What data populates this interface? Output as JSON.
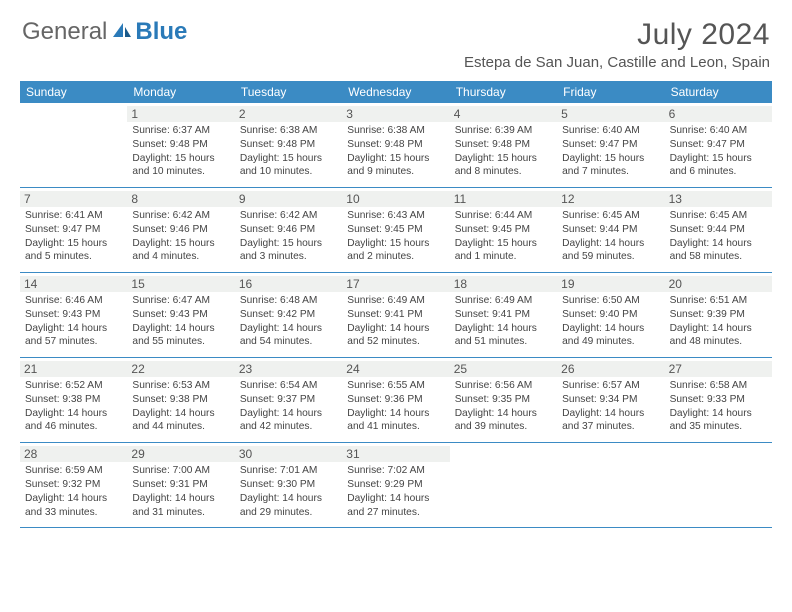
{
  "brand": {
    "part1": "General",
    "part2": "Blue"
  },
  "title": "July 2024",
  "location": "Estepa de San Juan, Castille and Leon, Spain",
  "header_bg": "#3b8bc4",
  "daynum_bg": "#eff1ef",
  "days_of_week": [
    "Sunday",
    "Monday",
    "Tuesday",
    "Wednesday",
    "Thursday",
    "Friday",
    "Saturday"
  ],
  "weeks": [
    [
      {
        "n": "",
        "sr": "",
        "ss": "",
        "dl": ""
      },
      {
        "n": "1",
        "sr": "Sunrise: 6:37 AM",
        "ss": "Sunset: 9:48 PM",
        "dl": "Daylight: 15 hours and 10 minutes."
      },
      {
        "n": "2",
        "sr": "Sunrise: 6:38 AM",
        "ss": "Sunset: 9:48 PM",
        "dl": "Daylight: 15 hours and 10 minutes."
      },
      {
        "n": "3",
        "sr": "Sunrise: 6:38 AM",
        "ss": "Sunset: 9:48 PM",
        "dl": "Daylight: 15 hours and 9 minutes."
      },
      {
        "n": "4",
        "sr": "Sunrise: 6:39 AM",
        "ss": "Sunset: 9:48 PM",
        "dl": "Daylight: 15 hours and 8 minutes."
      },
      {
        "n": "5",
        "sr": "Sunrise: 6:40 AM",
        "ss": "Sunset: 9:47 PM",
        "dl": "Daylight: 15 hours and 7 minutes."
      },
      {
        "n": "6",
        "sr": "Sunrise: 6:40 AM",
        "ss": "Sunset: 9:47 PM",
        "dl": "Daylight: 15 hours and 6 minutes."
      }
    ],
    [
      {
        "n": "7",
        "sr": "Sunrise: 6:41 AM",
        "ss": "Sunset: 9:47 PM",
        "dl": "Daylight: 15 hours and 5 minutes."
      },
      {
        "n": "8",
        "sr": "Sunrise: 6:42 AM",
        "ss": "Sunset: 9:46 PM",
        "dl": "Daylight: 15 hours and 4 minutes."
      },
      {
        "n": "9",
        "sr": "Sunrise: 6:42 AM",
        "ss": "Sunset: 9:46 PM",
        "dl": "Daylight: 15 hours and 3 minutes."
      },
      {
        "n": "10",
        "sr": "Sunrise: 6:43 AM",
        "ss": "Sunset: 9:45 PM",
        "dl": "Daylight: 15 hours and 2 minutes."
      },
      {
        "n": "11",
        "sr": "Sunrise: 6:44 AM",
        "ss": "Sunset: 9:45 PM",
        "dl": "Daylight: 15 hours and 1 minute."
      },
      {
        "n": "12",
        "sr": "Sunrise: 6:45 AM",
        "ss": "Sunset: 9:44 PM",
        "dl": "Daylight: 14 hours and 59 minutes."
      },
      {
        "n": "13",
        "sr": "Sunrise: 6:45 AM",
        "ss": "Sunset: 9:44 PM",
        "dl": "Daylight: 14 hours and 58 minutes."
      }
    ],
    [
      {
        "n": "14",
        "sr": "Sunrise: 6:46 AM",
        "ss": "Sunset: 9:43 PM",
        "dl": "Daylight: 14 hours and 57 minutes."
      },
      {
        "n": "15",
        "sr": "Sunrise: 6:47 AM",
        "ss": "Sunset: 9:43 PM",
        "dl": "Daylight: 14 hours and 55 minutes."
      },
      {
        "n": "16",
        "sr": "Sunrise: 6:48 AM",
        "ss": "Sunset: 9:42 PM",
        "dl": "Daylight: 14 hours and 54 minutes."
      },
      {
        "n": "17",
        "sr": "Sunrise: 6:49 AM",
        "ss": "Sunset: 9:41 PM",
        "dl": "Daylight: 14 hours and 52 minutes."
      },
      {
        "n": "18",
        "sr": "Sunrise: 6:49 AM",
        "ss": "Sunset: 9:41 PM",
        "dl": "Daylight: 14 hours and 51 minutes."
      },
      {
        "n": "19",
        "sr": "Sunrise: 6:50 AM",
        "ss": "Sunset: 9:40 PM",
        "dl": "Daylight: 14 hours and 49 minutes."
      },
      {
        "n": "20",
        "sr": "Sunrise: 6:51 AM",
        "ss": "Sunset: 9:39 PM",
        "dl": "Daylight: 14 hours and 48 minutes."
      }
    ],
    [
      {
        "n": "21",
        "sr": "Sunrise: 6:52 AM",
        "ss": "Sunset: 9:38 PM",
        "dl": "Daylight: 14 hours and 46 minutes."
      },
      {
        "n": "22",
        "sr": "Sunrise: 6:53 AM",
        "ss": "Sunset: 9:38 PM",
        "dl": "Daylight: 14 hours and 44 minutes."
      },
      {
        "n": "23",
        "sr": "Sunrise: 6:54 AM",
        "ss": "Sunset: 9:37 PM",
        "dl": "Daylight: 14 hours and 42 minutes."
      },
      {
        "n": "24",
        "sr": "Sunrise: 6:55 AM",
        "ss": "Sunset: 9:36 PM",
        "dl": "Daylight: 14 hours and 41 minutes."
      },
      {
        "n": "25",
        "sr": "Sunrise: 6:56 AM",
        "ss": "Sunset: 9:35 PM",
        "dl": "Daylight: 14 hours and 39 minutes."
      },
      {
        "n": "26",
        "sr": "Sunrise: 6:57 AM",
        "ss": "Sunset: 9:34 PM",
        "dl": "Daylight: 14 hours and 37 minutes."
      },
      {
        "n": "27",
        "sr": "Sunrise: 6:58 AM",
        "ss": "Sunset: 9:33 PM",
        "dl": "Daylight: 14 hours and 35 minutes."
      }
    ],
    [
      {
        "n": "28",
        "sr": "Sunrise: 6:59 AM",
        "ss": "Sunset: 9:32 PM",
        "dl": "Daylight: 14 hours and 33 minutes."
      },
      {
        "n": "29",
        "sr": "Sunrise: 7:00 AM",
        "ss": "Sunset: 9:31 PM",
        "dl": "Daylight: 14 hours and 31 minutes."
      },
      {
        "n": "30",
        "sr": "Sunrise: 7:01 AM",
        "ss": "Sunset: 9:30 PM",
        "dl": "Daylight: 14 hours and 29 minutes."
      },
      {
        "n": "31",
        "sr": "Sunrise: 7:02 AM",
        "ss": "Sunset: 9:29 PM",
        "dl": "Daylight: 14 hours and 27 minutes."
      },
      {
        "n": "",
        "sr": "",
        "ss": "",
        "dl": ""
      },
      {
        "n": "",
        "sr": "",
        "ss": "",
        "dl": ""
      },
      {
        "n": "",
        "sr": "",
        "ss": "",
        "dl": ""
      }
    ]
  ]
}
